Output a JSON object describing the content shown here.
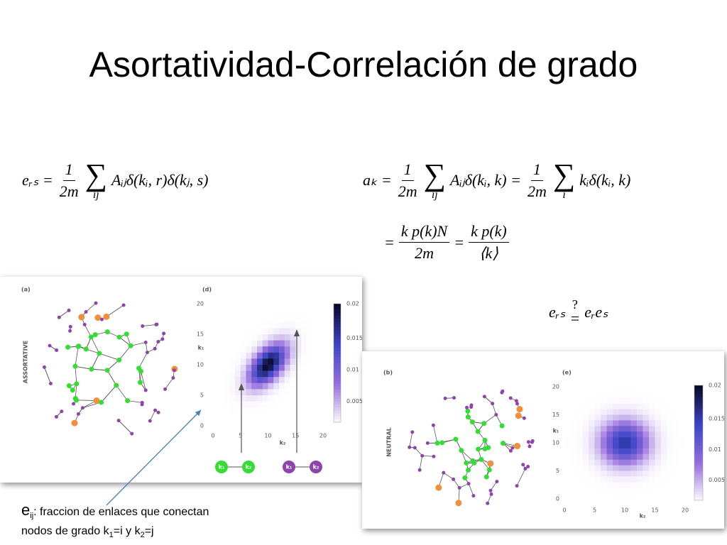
{
  "title": "Asortatividad-Correlación de grado",
  "equations": [
    [
      "eᵣₛ =",
      {
        "num": "1",
        "den": "2m"
      },
      {
        "op": "∑",
        "sub": "ij"
      },
      "Aᵢⱼδ(kᵢ, r)δ(kⱼ, s)"
    ],
    [
      "aₖ =",
      {
        "num": "1",
        "den": "2m"
      },
      {
        "op": "∑",
        "sub": "ij"
      },
      "Aᵢⱼδ(kᵢ, k) =",
      {
        "num": "1",
        "den": "2m"
      },
      {
        "op": "∑",
        "sub": "i"
      },
      "kᵢδ(kᵢ, k)"
    ],
    [
      "=",
      {
        "num": "k p(k)N",
        "den": "2m"
      },
      "=",
      {
        "num": "k p(k)",
        "den": "⟨k⟩"
      }
    ],
    [
      "eᵣₛ",
      {
        "over": "?",
        "base": "="
      },
      "eᵣeₛ"
    ]
  ],
  "panels": [
    {
      "label": "(a)",
      "side": "ASSORTATIVE",
      "heat_label": "(d)",
      "y_ticks": [
        "0",
        "5",
        "10",
        "15",
        "20"
      ],
      "x_ticks": [
        "0",
        "5",
        "10",
        "15",
        "20"
      ],
      "y_axis": "k₁",
      "x_axis": "k₂",
      "colorbar": [
        "0.02",
        "0.015",
        "0.01",
        "0.005"
      ],
      "nodes": [
        "k₁",
        "k₂",
        "k₁",
        "k₂"
      ]
    },
    {
      "label": "(b)",
      "side": "NEUTRAL",
      "heat_label": "(e)",
      "y_ticks": [
        "0",
        "5",
        "10",
        "15",
        "20"
      ],
      "x_ticks": [
        "0",
        "5",
        "10",
        "15",
        "20"
      ],
      "y_axis": "k₁",
      "x_axis": "k₂",
      "colorbar": [
        "0.02",
        "0.015",
        "0.01",
        "0.005"
      ]
    }
  ],
  "caption": [
    [
      "e",
      {
        "sub": "ij"
      },
      ": fraccion de enlaces que conectan"
    ],
    [
      "nodos de grado k",
      {
        "sub": "1"
      },
      "=i y k",
      {
        "sub": "2"
      },
      "=j"
    ]
  ]
}
